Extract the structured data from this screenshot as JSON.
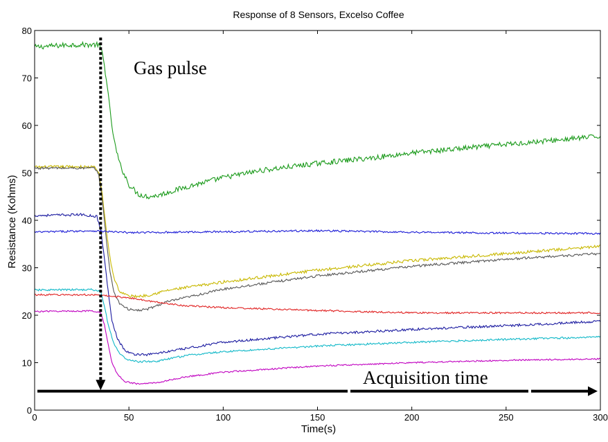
{
  "chart_data": {
    "type": "line",
    "title": "Response of 8 Sensors, Excelso Coffee",
    "xlabel": "Time(s)",
    "ylabel": "Resistance (Kohms)",
    "xlim": [
      0,
      300
    ],
    "ylim": [
      0,
      80
    ],
    "xticks": [
      "0",
      "50",
      "100",
      "150",
      "200",
      "250",
      "300"
    ],
    "yticks": [
      "0",
      "10",
      "20",
      "30",
      "40",
      "50",
      "60",
      "70",
      "80"
    ],
    "grid": false,
    "legend": "none",
    "series": [
      {
        "color": "#1a9a1a",
        "noise": 0.55,
        "points": [
          [
            0,
            76.5
          ],
          [
            20,
            77
          ],
          [
            34,
            77
          ],
          [
            36,
            75
          ],
          [
            38,
            70
          ],
          [
            40,
            63
          ],
          [
            42,
            57
          ],
          [
            45,
            52
          ],
          [
            50,
            47.5
          ],
          [
            55,
            45.5
          ],
          [
            60,
            45
          ],
          [
            65,
            45.2
          ],
          [
            70,
            45.8
          ],
          [
            80,
            47
          ],
          [
            100,
            49
          ],
          [
            120,
            50.5
          ],
          [
            150,
            52
          ],
          [
            180,
            53.2
          ],
          [
            200,
            54.2
          ],
          [
            250,
            56
          ],
          [
            300,
            57.7
          ]
        ]
      },
      {
        "color": "#c8b800",
        "noise": 0.3,
        "points": [
          [
            0,
            51.2
          ],
          [
            20,
            51.3
          ],
          [
            32,
            51.2
          ],
          [
            34,
            50
          ],
          [
            36,
            45
          ],
          [
            38,
            38
          ],
          [
            40,
            32
          ],
          [
            42,
            28
          ],
          [
            45,
            25
          ],
          [
            50,
            24
          ],
          [
            55,
            24
          ],
          [
            60,
            24.2
          ],
          [
            70,
            25.2
          ],
          [
            100,
            27
          ],
          [
            150,
            29.5
          ],
          [
            200,
            31.5
          ],
          [
            250,
            33
          ],
          [
            300,
            34.5
          ]
        ]
      },
      {
        "color": "#555555",
        "noise": 0.25,
        "points": [
          [
            0,
            51
          ],
          [
            20,
            51
          ],
          [
            32,
            51
          ],
          [
            34,
            49.5
          ],
          [
            36,
            44
          ],
          [
            38,
            36
          ],
          [
            40,
            29
          ],
          [
            42,
            25
          ],
          [
            45,
            22.5
          ],
          [
            50,
            21.2
          ],
          [
            55,
            21
          ],
          [
            60,
            21.3
          ],
          [
            70,
            22.8
          ],
          [
            100,
            25.5
          ],
          [
            150,
            28.3
          ],
          [
            200,
            30.3
          ],
          [
            250,
            31.8
          ],
          [
            300,
            33
          ]
        ]
      },
      {
        "color": "#1a1ad6",
        "noise": 0.2,
        "points": [
          [
            0,
            37.5
          ],
          [
            30,
            37.8
          ],
          [
            50,
            37.4
          ],
          [
            100,
            37.6
          ],
          [
            150,
            37.8
          ],
          [
            200,
            37.5
          ],
          [
            250,
            37.3
          ],
          [
            300,
            37.2
          ]
        ]
      },
      {
        "color": "#1a1aa0",
        "noise": 0.25,
        "points": [
          [
            0,
            41
          ],
          [
            25,
            41.2
          ],
          [
            33,
            40.8
          ],
          [
            35,
            38
          ],
          [
            37,
            32
          ],
          [
            39,
            25
          ],
          [
            41,
            19
          ],
          [
            44,
            15
          ],
          [
            48,
            12.5
          ],
          [
            52,
            11.8
          ],
          [
            60,
            11.7
          ],
          [
            70,
            12.3
          ],
          [
            100,
            14.3
          ],
          [
            150,
            16
          ],
          [
            200,
            17
          ],
          [
            250,
            17.8
          ],
          [
            300,
            18.7
          ]
        ]
      },
      {
        "color": "#10b8c8",
        "noise": 0.2,
        "points": [
          [
            0,
            25.3
          ],
          [
            30,
            25.4
          ],
          [
            35,
            25
          ],
          [
            37,
            22
          ],
          [
            39,
            18
          ],
          [
            42,
            14
          ],
          [
            46,
            11.5
          ],
          [
            50,
            10.5
          ],
          [
            55,
            10.2
          ],
          [
            65,
            10.3
          ],
          [
            80,
            11.5
          ],
          [
            100,
            12.3
          ],
          [
            150,
            13.5
          ],
          [
            200,
            14.3
          ],
          [
            250,
            14.9
          ],
          [
            300,
            15.4
          ]
        ]
      },
      {
        "color": "#e02020",
        "noise": 0.18,
        "points": [
          [
            0,
            24.3
          ],
          [
            30,
            24.3
          ],
          [
            40,
            24
          ],
          [
            50,
            23.7
          ],
          [
            60,
            23
          ],
          [
            80,
            22
          ],
          [
            100,
            21.6
          ],
          [
            150,
            21
          ],
          [
            200,
            20.5
          ],
          [
            250,
            20.5
          ],
          [
            300,
            20.5
          ]
        ]
      },
      {
        "color": "#c000c0",
        "noise": 0.15,
        "points": [
          [
            0,
            20.8
          ],
          [
            30,
            20.9
          ],
          [
            35,
            20.5
          ],
          [
            37,
            18
          ],
          [
            39,
            14
          ],
          [
            41,
            10
          ],
          [
            44,
            7.5
          ],
          [
            48,
            6
          ],
          [
            55,
            5.5
          ],
          [
            65,
            5.8
          ],
          [
            80,
            7
          ],
          [
            100,
            8
          ],
          [
            150,
            9.3
          ],
          [
            200,
            10
          ],
          [
            250,
            10.5
          ],
          [
            300,
            10.8
          ]
        ]
      }
    ],
    "annotations": {
      "gas_pulse": {
        "text": "Gas pulse",
        "x": 35,
        "y_from": 78.5,
        "y_to": 4.2
      },
      "acquisition": {
        "text": "Acquisition time",
        "y": 4,
        "x_from": 0,
        "x_to": 300
      }
    }
  }
}
